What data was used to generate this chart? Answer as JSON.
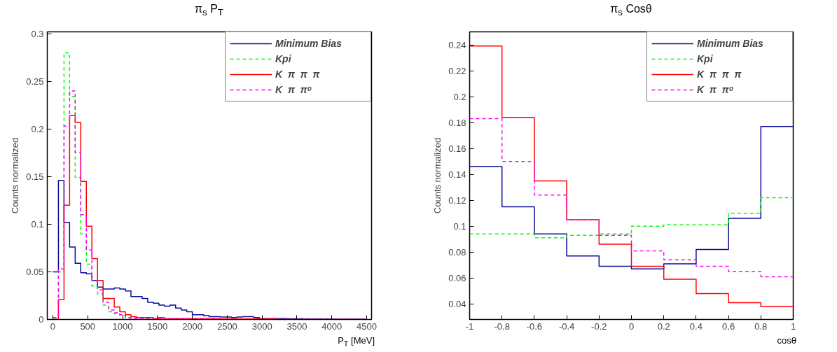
{
  "chart_data": [
    {
      "type": "histogram",
      "title": "π$_{s}$ P$_{T}$",
      "xlabel": "P$_{T}$ [MeV]",
      "ylabel": "Counts normalized",
      "bins": [
        0,
        80,
        160,
        240,
        320,
        400,
        480,
        560,
        640,
        720,
        800,
        880,
        960,
        1040,
        1120,
        1200,
        1280,
        1360,
        1440,
        1520,
        1600,
        1680,
        1760,
        1840,
        1920,
        2000,
        2080,
        2160,
        2240,
        2320,
        2400,
        2480,
        2560,
        2640,
        2720,
        2800,
        2880,
        2960,
        3040,
        3120,
        3200,
        3280,
        3360,
        3440,
        3520,
        3600,
        3680,
        3760,
        3840,
        3920,
        4000,
        4080,
        4160,
        4240,
        4320,
        4400,
        4480
      ],
      "xlim": [
        -80,
        4570
      ],
      "ylim": [
        0,
        0.302
      ],
      "xticks": [
        0,
        500,
        1000,
        1500,
        2000,
        2500,
        3000,
        3500,
        4000,
        4500
      ],
      "yticks": [
        0,
        0.05,
        0.1,
        0.15,
        0.2,
        0.25,
        0.3
      ],
      "grid": false,
      "legend": "top right",
      "series": [
        {
          "name": "Minimum Bias",
          "color": "#0a0a96",
          "line_style": "solid",
          "values": [
            0.05,
            0.146,
            0.102,
            0.076,
            0.059,
            0.049,
            0.048,
            0.041,
            0.034,
            0.032,
            0.032,
            0.033,
            0.032,
            0.03,
            0.024,
            0.024,
            0.022,
            0.018,
            0.017,
            0.015,
            0.014,
            0.015,
            0.012,
            0.01,
            0.008,
            0.005,
            0.005,
            0.004,
            0.003,
            0.003,
            0.0025,
            0.0025,
            0.002,
            0.0025,
            0.003,
            0.003,
            0.002,
            0.001,
            0.001,
            0.001,
            0.001,
            0.001,
            0.0008,
            0.0008,
            0.0008,
            0.0006,
            0.0006,
            0.0006,
            0.0005,
            0.0005,
            0.0004,
            0.0004,
            0.0004,
            0.0003,
            0.0003,
            0.0003
          ]
        },
        {
          "name": "Kpi",
          "color": "#00ff00",
          "line_style": "dashed",
          "values": [
            0.002,
            0.05,
            0.28,
            0.234,
            0.149,
            0.09,
            0.058,
            0.035,
            0.027,
            0.015,
            0.008,
            0.006,
            0.004,
            0.002,
            0.002,
            0.001,
            0.001,
            0.001,
            0.001,
            0.001,
            0.0005,
            0.0005,
            0.0005,
            0.0005,
            0.0005,
            0.0005,
            0.0005,
            0.0005,
            0.0005,
            0.0005,
            0,
            0,
            0,
            0,
            0,
            0,
            0,
            0,
            0,
            0,
            0,
            0,
            0,
            0,
            0,
            0,
            0,
            0,
            0,
            0,
            0,
            0,
            0,
            0,
            0,
            0
          ]
        },
        {
          "name": "K  π  π  π",
          "color": "#ff0000",
          "line_style": "solid",
          "values": [
            0,
            0.021,
            0.12,
            0.214,
            0.207,
            0.145,
            0.098,
            0.064,
            0.041,
            0.022,
            0.022,
            0.013,
            0.008,
            0.005,
            0.003,
            0.002,
            0.002,
            0.002,
            0.001,
            0.002,
            0.001,
            0.001,
            0.001,
            0.001,
            0.001,
            0.001,
            0.001,
            0.001,
            0.001,
            0.001,
            0.0005,
            0.0005,
            0.0005,
            0.0005,
            0.0005,
            0.0005,
            0.0005,
            0.0005,
            0.0005,
            0.0005,
            0,
            0,
            0,
            0,
            0,
            0,
            0,
            0,
            0,
            0,
            0,
            0,
            0,
            0,
            0,
            0
          ]
        },
        {
          "name": "K  π  πᵒ",
          "color": "#ff00ff",
          "line_style": "dashed",
          "values": [
            0.002,
            0.053,
            0.203,
            0.24,
            0.175,
            0.11,
            0.073,
            0.041,
            0.031,
            0.018,
            0.01,
            0.007,
            0.005,
            0.002,
            0.001,
            0.001,
            0.001,
            0.001,
            0.001,
            0.001,
            0.0005,
            0.0005,
            0.0005,
            0.0005,
            0.0005,
            0.0005,
            0.0005,
            0.0005,
            0.0005,
            0.0005,
            0,
            0,
            0,
            0,
            0,
            0,
            0,
            0,
            0,
            0,
            0,
            0,
            0,
            0,
            0,
            0,
            0,
            0,
            0,
            0,
            0,
            0,
            0,
            0,
            0,
            0
          ]
        }
      ]
    },
    {
      "type": "histogram",
      "title": "π$_{s}$ Cosθ",
      "xlabel": "cosθ",
      "ylabel": "Counts normalized",
      "bins": [
        -1,
        -0.8,
        -0.6,
        -0.4,
        -0.2,
        0,
        0.2,
        0.4,
        0.6,
        0.8,
        1
      ],
      "xlim": [
        -1,
        1
      ],
      "ylim": [
        0.028,
        0.25
      ],
      "xticks": [
        -1,
        -0.8,
        -0.6,
        -0.4,
        -0.2,
        0,
        0.2,
        0.4,
        0.6,
        0.8,
        1
      ],
      "yticks": [
        0.04,
        0.06,
        0.08,
        0.1,
        0.12,
        0.14,
        0.16,
        0.18,
        0.2,
        0.22,
        0.24
      ],
      "grid": false,
      "legend": "top right",
      "series": [
        {
          "name": "Minimum Bias",
          "color": "#0a0a96",
          "line_style": "solid",
          "values": [
            0.146,
            0.115,
            0.094,
            0.077,
            0.069,
            0.067,
            0.071,
            0.082,
            0.106,
            0.177
          ]
        },
        {
          "name": "Kpi",
          "color": "#00ff00",
          "line_style": "dashed",
          "values": [
            0.094,
            0.094,
            0.091,
            0.093,
            0.094,
            0.1,
            0.101,
            0.101,
            0.11,
            0.122
          ]
        },
        {
          "name": "K  π  π  π",
          "color": "#ff0000",
          "line_style": "solid",
          "values": [
            0.239,
            0.184,
            0.135,
            0.105,
            0.086,
            0.069,
            0.059,
            0.048,
            0.041,
            0.038
          ]
        },
        {
          "name": "K  π  πᵒ",
          "color": "#ff00ff",
          "line_style": "dashed",
          "values": [
            0.183,
            0.15,
            0.124,
            0.105,
            0.093,
            0.081,
            0.074,
            0.069,
            0.065,
            0.061
          ]
        }
      ]
    }
  ]
}
